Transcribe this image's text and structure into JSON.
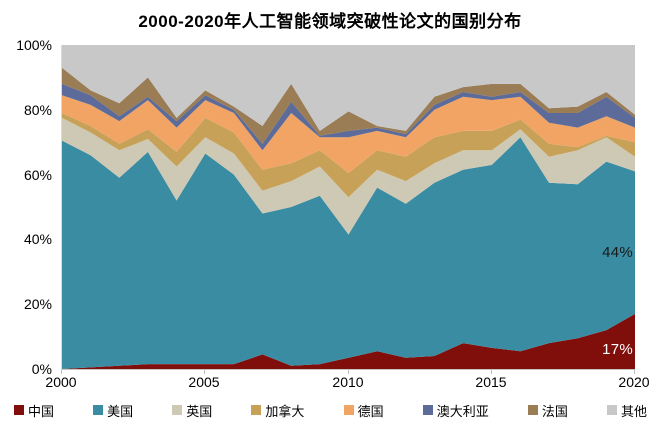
{
  "title": "2000-2020年人工智能领域突破性论文的国别分布",
  "chart_data": {
    "type": "area",
    "stacked": true,
    "unit": "percent",
    "title": "2000-2020年人工智能领域突破性论文的国别分布",
    "xlabel": "",
    "ylabel": "",
    "ylim": [
      0,
      100
    ],
    "grid": false,
    "legend_position": "bottom",
    "x": [
      2000,
      2001,
      2002,
      2003,
      2004,
      2005,
      2006,
      2007,
      2008,
      2009,
      2010,
      2011,
      2012,
      2013,
      2014,
      2015,
      2016,
      2017,
      2018,
      2019,
      2020
    ],
    "x_ticks": [
      2000,
      2005,
      2010,
      2015,
      2020
    ],
    "x_tick_labels": [
      "2000",
      "2005",
      "2010",
      "2015",
      "2020"
    ],
    "y_ticks": [
      0,
      20,
      40,
      60,
      80,
      100
    ],
    "y_tick_labels": [
      "0%",
      "20%",
      "40%",
      "60%",
      "80%",
      "100%"
    ],
    "series": [
      {
        "name": "中国",
        "key": "china",
        "color": "#800F0C",
        "values": [
          0,
          0.5,
          1,
          1.5,
          1.5,
          1.5,
          1.5,
          4.5,
          1,
          1.5,
          3.5,
          5.5,
          3.5,
          4,
          8,
          6.5,
          5.5,
          8,
          9.5,
          12,
          17
        ]
      },
      {
        "name": "美国",
        "key": "usa",
        "color": "#3A8CA2",
        "values": [
          70.5,
          65.5,
          58,
          65.5,
          50.5,
          65,
          58.5,
          43.5,
          49,
          52,
          38,
          50.5,
          47.5,
          53.5,
          53.5,
          56.5,
          66,
          49.5,
          47.5,
          52,
          44
        ]
      },
      {
        "name": "英国",
        "key": "uk",
        "color": "#CDC9B4",
        "values": [
          7,
          7,
          8.5,
          4,
          10.5,
          5,
          6.5,
          7,
          8,
          9,
          11.5,
          5.5,
          7,
          6,
          6,
          4.5,
          2.5,
          8,
          10.5,
          7.5,
          4.5
        ]
      },
      {
        "name": "加拿大",
        "key": "canada",
        "color": "#C8A159",
        "values": [
          1.5,
          2,
          2,
          3,
          4.5,
          6,
          6.5,
          6.5,
          5.5,
          5,
          7.5,
          6,
          7.5,
          8,
          6,
          6,
          3,
          4,
          1,
          0.5,
          4.5
        ]
      },
      {
        "name": "德国",
        "key": "germany",
        "color": "#F2A465",
        "values": [
          5.5,
          6.5,
          7,
          9,
          7.5,
          5.5,
          6,
          6,
          15.5,
          4,
          11,
          6,
          6,
          8.5,
          10.5,
          9.5,
          7,
          6.5,
          6,
          6,
          4.5
        ]
      },
      {
        "name": "澳大利亚",
        "key": "australia",
        "color": "#5C6B99",
        "values": [
          3.5,
          3,
          1.5,
          1,
          2,
          1.5,
          1,
          2,
          3.5,
          0.5,
          2,
          1,
          1,
          1.5,
          1.5,
          1,
          1.5,
          3,
          4.5,
          6,
          3
        ]
      },
      {
        "name": "法国",
        "key": "france",
        "color": "#9A7C55",
        "values": [
          5,
          1.5,
          4,
          6,
          1,
          1.5,
          1,
          5.5,
          5.5,
          1.5,
          6,
          0.5,
          1,
          2.5,
          1.5,
          4,
          2.5,
          1.5,
          2,
          1.5,
          1
        ]
      },
      {
        "name": "其他",
        "key": "other",
        "color": "#C8C8C9",
        "values": [
          7,
          14,
          18,
          10,
          22.5,
          14,
          19,
          25,
          12,
          26.5,
          20.5,
          25,
          26.5,
          16,
          13,
          12,
          12,
          19.5,
          19,
          14.5,
          21.5
        ]
      }
    ],
    "annotations": [
      {
        "text": "44%",
        "series": "美国",
        "year": 2020
      },
      {
        "text": "17%",
        "series": "中国",
        "year": 2020
      }
    ]
  }
}
